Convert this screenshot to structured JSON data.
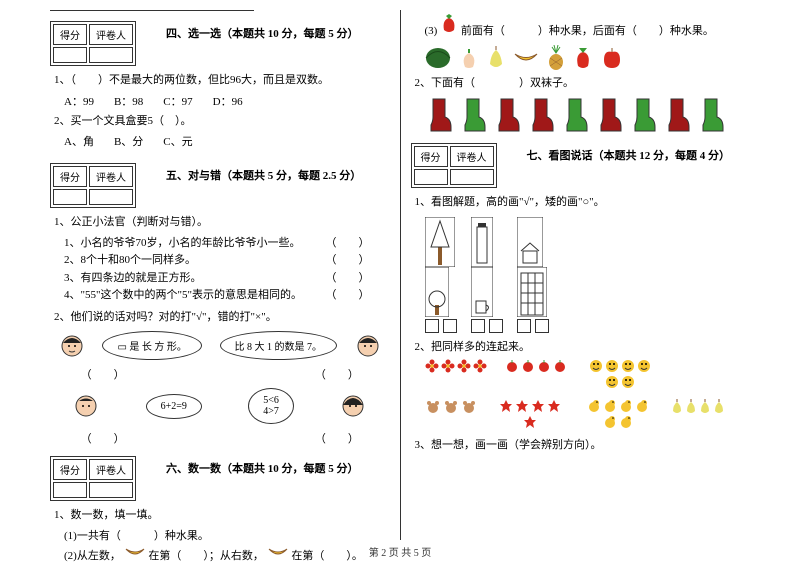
{
  "score_labels": {
    "score": "得分",
    "grader": "评卷人"
  },
  "s4": {
    "title": "四、选一选（本题共 10 分，每题 5 分）",
    "q1": "1、（　　）不是最大的两位数，但比96大，而且是双数。",
    "q1opts": {
      "a": "A：99",
      "b": "B：98",
      "c": "C：97",
      "d": "D：96"
    },
    "q2": "2、买一个文具盒要5（　）。",
    "q2opts": {
      "a": "A、角",
      "b": "B、分",
      "c": "C、元"
    }
  },
  "s5": {
    "title": "五、对与错（本题共 5 分，每题 2.5 分）",
    "q1": "1、公正小法官（判断对与错）。",
    "i1": "1、小名的爷爷70岁，小名的年龄比爷爷小一些。",
    "i2": "2、8个十和80个一同样多。",
    "i3": "3、有四条边的就是正方形。",
    "i4": "4、\"55\"这个数中的两个\"5\"表示的意思是相同的。",
    "q2": "2、他们说的话对吗？对的打\"√\"，错的打\"×\"。",
    "b1": "▭ 是 长 方 形。",
    "b2": "比 8 大 1 的数是 7。",
    "b3": "6+2=9",
    "b4": "5<6\n4>7",
    "paren": "（　　）"
  },
  "s6": {
    "title": "六、数一数（本题共 10 分，每题 5 分）",
    "q1": "1、数一数，填一填。",
    "i1": "(1)一共有（　　　）种水果。",
    "i2a": "(2)从左数，",
    "i2b": "在第（　　）；从右数，",
    "i2c": "在第（　　）。",
    "i3a": "(3)",
    "i3b": "前面有（　　　）种水果，后面有（　　）种水果。",
    "q2": "2、下面有（　　　　）双袜子。"
  },
  "s7": {
    "title": "七、看图说话（本题共 12 分，每题 4 分）",
    "q1": "1、看图解题，高的画\"√\"，矮的画\"○\"。",
    "q2": "2、把同样多的连起来。",
    "q3": "3、想一想，画一画（学会辨别方向）。"
  },
  "footer": "第 2 页 共 5 页",
  "colors": {
    "red": "#d92b1f",
    "green": "#3a9b35",
    "yellow": "#f4c430",
    "brown": "#8b5a2b",
    "pink": "#f5b5c0",
    "orange": "#e8833a",
    "darkred": "#a01818",
    "purple": "#7b4b9e",
    "blue": "#4a7bbf",
    "skin": "#f5d0b0",
    "black": "#222"
  }
}
